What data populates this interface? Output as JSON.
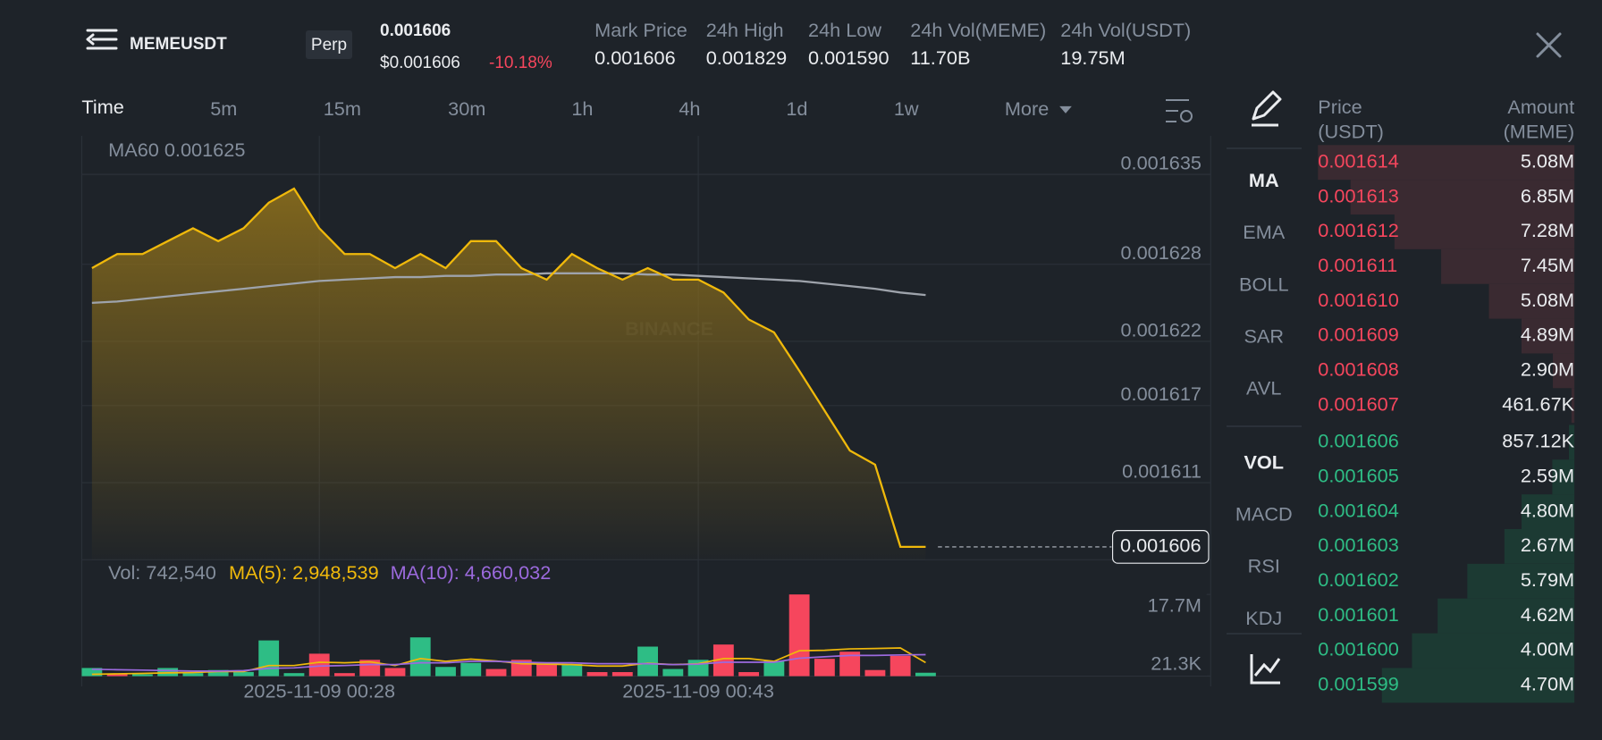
{
  "header": {
    "symbol": "MEMEUSDT",
    "badge": "Perp",
    "price": "0.001606",
    "price_usd": "$0.001606",
    "change": "-10.18%",
    "stats": [
      {
        "label": "Mark Price",
        "value": "0.001606"
      },
      {
        "label": "24h High",
        "value": "0.001829"
      },
      {
        "label": "24h Low",
        "value": "0.001590"
      },
      {
        "label": "24h Vol(MEME)",
        "value": "11.70B"
      },
      {
        "label": "24h Vol(USDT)",
        "value": "19.75M"
      }
    ]
  },
  "timeframes": [
    "Time",
    "5m",
    "15m",
    "30m",
    "1h",
    "4h",
    "1d",
    "1w",
    "More"
  ],
  "indicators": {
    "main": [
      "MA",
      "EMA",
      "BOLL",
      "SAR",
      "AVL"
    ],
    "sub": [
      "VOL",
      "MACD",
      "RSI",
      "KDJ"
    ]
  },
  "chart_data": [
    {
      "type": "area",
      "ma_label": "MA60 0.001625",
      "watermark": "BINANCE",
      "categories": [
        null,
        null,
        null,
        null,
        null,
        null,
        null,
        null,
        null,
        "2025-11-09 00:28",
        null,
        null,
        null,
        null,
        null,
        null,
        null,
        null,
        null,
        null,
        null,
        null,
        null,
        null,
        "2025-11-09 00:43",
        null,
        null,
        null,
        null,
        null,
        null,
        null,
        null,
        null
      ],
      "series": [
        {
          "color": "#f0b90b",
          "values": [
            0.0016277,
            0.0016288,
            0.0016288,
            0.0016298,
            0.0016308,
            0.0016298,
            0.0016308,
            0.0016328,
            0.0016339,
            0.0016308,
            0.0016288,
            0.0016288,
            0.0016277,
            0.0016288,
            0.0016277,
            0.0016298,
            0.0016298,
            0.0016277,
            0.0016268,
            0.0016288,
            0.0016277,
            0.0016268,
            0.0016277,
            0.0016268,
            0.0016268,
            0.0016258,
            0.0016237,
            0.0016227,
            0.0016197,
            0.0016166,
            0.0016135,
            0.0016124,
            0.001606,
            0.001606
          ]
        },
        {
          "name": "MA60",
          "color": "#9ea3ab",
          "values": [
            0.001625,
            0.0016251,
            0.0016253,
            0.0016255,
            0.0016257,
            0.0016259,
            0.0016261,
            0.0016263,
            0.0016265,
            0.0016267,
            0.0016268,
            0.0016269,
            0.001627,
            0.001627,
            0.0016271,
            0.0016271,
            0.0016272,
            0.0016272,
            0.0016273,
            0.0016273,
            0.0016273,
            0.0016273,
            0.0016272,
            0.0016272,
            0.0016271,
            0.001627,
            0.0016269,
            0.0016268,
            0.0016267,
            0.0016265,
            0.0016263,
            0.0016261,
            0.0016258,
            0.0016256
          ]
        }
      ],
      "last_price": 0.001606,
      "ylim": [
        0.001605,
        0.001638
      ],
      "yticks": [
        0.001611,
        0.001617,
        0.001622,
        0.001628,
        0.001635
      ],
      "grid": true
    },
    {
      "type": "bar",
      "legend": [
        "Vol: 742,540",
        "MA(5): 2,948,539",
        "MA(10): 4,660,032"
      ],
      "values": [
        1770000,
        440000,
        400000,
        1770000,
        660000,
        1330000,
        900000,
        7740000,
        660000,
        4870000,
        660000,
        3540000,
        1770000,
        8400000,
        2000000,
        2870000,
        1550000,
        3540000,
        2650000,
        2650000,
        880000,
        880000,
        6400000,
        1550000,
        3540000,
        6850000,
        880000,
        3300000,
        17700000,
        3760000,
        5300000,
        1330000,
        4400000,
        742540
      ],
      "colors": [
        "#2ebd85",
        "#f6465d",
        "#2ebd85",
        "#2ebd85",
        "#2ebd85",
        "#2ebd85",
        "#2ebd85",
        "#2ebd85",
        "#2ebd85",
        "#f6465d",
        "#f6465d",
        "#f6465d",
        "#f6465d",
        "#2ebd85",
        "#2ebd85",
        "#2ebd85",
        "#f6465d",
        "#f6465d",
        "#f6465d",
        "#2ebd85",
        "#f6465d",
        "#f6465d",
        "#2ebd85",
        "#2ebd85",
        "#2ebd85",
        "#f6465d",
        "#f6465d",
        "#2ebd85",
        "#f6465d",
        "#f6465d",
        "#f6465d",
        "#f6465d",
        "#f6465d",
        "#2ebd85"
      ],
      "series": [
        {
          "color": "#f0b90b",
          "values": [
            400000,
            500000,
            600000,
            700000,
            800000,
            1000000,
            1000000,
            2300000,
            2300000,
            3000000,
            2900000,
            3100000,
            2300000,
            3800000,
            3200000,
            3700000,
            3300000,
            2700000,
            2600000,
            2500000,
            2200000,
            2200000,
            2800000,
            2500000,
            2700000,
            3800000,
            3800000,
            3200000,
            5500000,
            5600000,
            5900000,
            6000000,
            6100000,
            2948539
          ]
        },
        {
          "color": "#9c6ade",
          "values": [
            1500000,
            1400000,
            1300000,
            1200000,
            1100000,
            1100000,
            1200000,
            1700000,
            1800000,
            2200000,
            2300000,
            2500000,
            2500000,
            2900000,
            2900000,
            3200000,
            3200000,
            3000000,
            2900000,
            2900000,
            2700000,
            2700000,
            2700000,
            2500000,
            2600000,
            3000000,
            3000000,
            3000000,
            3900000,
            4200000,
            4500000,
            4500000,
            4600000,
            4660032
          ]
        }
      ],
      "ylim": [
        0,
        17700000
      ],
      "yticks": [
        {
          "value": 21300,
          "label": "21.3K"
        },
        {
          "value": 17700000,
          "label": "17.7M"
        }
      ]
    }
  ],
  "order_book": {
    "price_header": "Price",
    "price_unit": "(USDT)",
    "amount_header": "Amount",
    "amount_unit": "(MEME)",
    "ask_color": "#f6465d",
    "bid_color": "#2ebd85",
    "asks": [
      {
        "price": "0.001614",
        "amount": 5080000,
        "label": "5.08M"
      },
      {
        "price": "0.001613",
        "amount": 6850000,
        "label": "6.85M"
      },
      {
        "price": "0.001612",
        "amount": 7280000,
        "label": "7.28M"
      },
      {
        "price": "0.001611",
        "amount": 7450000,
        "label": "7.45M"
      },
      {
        "price": "0.001610",
        "amount": 5080000,
        "label": "5.08M"
      },
      {
        "price": "0.001609",
        "amount": 4890000,
        "label": "4.89M"
      },
      {
        "price": "0.001608",
        "amount": 2900000,
        "label": "2.90M"
      },
      {
        "price": "0.001607",
        "amount": 461670,
        "label": "461.67K"
      }
    ],
    "bids": [
      {
        "price": "0.001606",
        "amount": 857120,
        "label": "857.12K"
      },
      {
        "price": "0.001605",
        "amount": 2590000,
        "label": "2.59M"
      },
      {
        "price": "0.001604",
        "amount": 4800000,
        "label": "4.80M"
      },
      {
        "price": "0.001603",
        "amount": 2670000,
        "label": "2.67M"
      },
      {
        "price": "0.001602",
        "amount": 5790000,
        "label": "5.79M"
      },
      {
        "price": "0.001601",
        "amount": 4620000,
        "label": "4.62M"
      },
      {
        "price": "0.001600",
        "amount": 4000000,
        "label": "4.00M"
      },
      {
        "price": "0.001599",
        "amount": 4700000,
        "label": "4.70M"
      }
    ]
  }
}
